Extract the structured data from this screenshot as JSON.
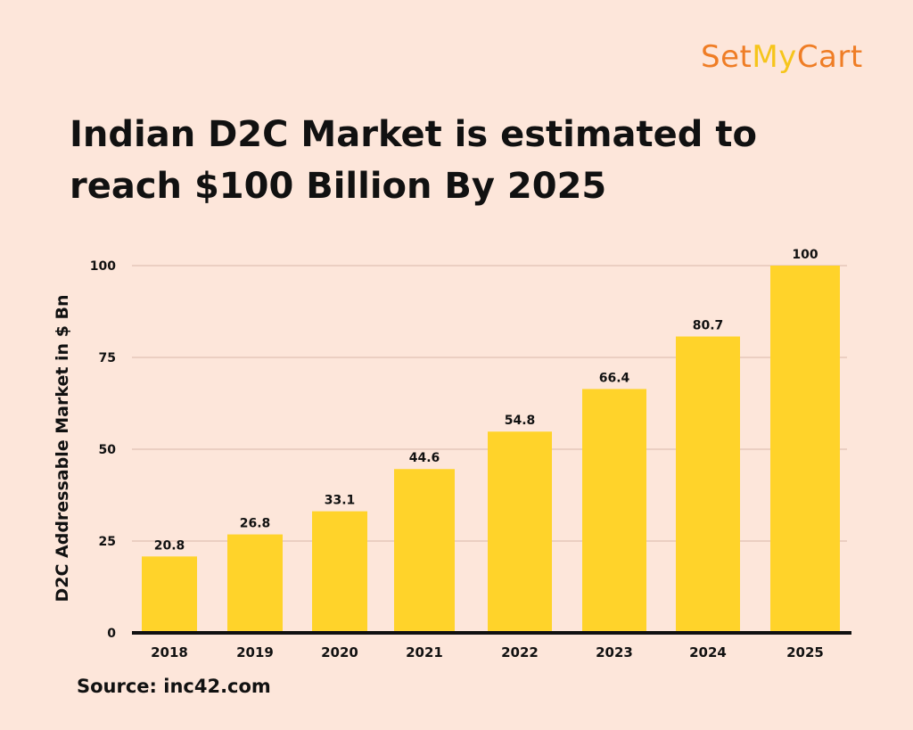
{
  "logo": {
    "part1": "Set",
    "part2": "My",
    "part3": "Cart"
  },
  "title": {
    "line1": "Indian D2C Market is estimated to",
    "line2": "reach $100 Billion By 2025"
  },
  "source": "Source: inc42.com",
  "colors": {
    "bar": "#ffd32a",
    "background": "#fde6da",
    "grid": "#d9b8ab",
    "axis": "#111111",
    "text": "#111111"
  },
  "chart_data": {
    "type": "bar",
    "title": "Indian D2C Market is estimated to reach $100 Billion By 2025",
    "categories": [
      "2018",
      "2019",
      "2020",
      "2021",
      "2022",
      "2023",
      "2024",
      "2025"
    ],
    "values": [
      20.8,
      26.8,
      33.1,
      44.6,
      54.8,
      66.4,
      80.7,
      100
    ],
    "data_labels": [
      "20.8",
      "26.8",
      "33.1",
      "44.6",
      "54.8",
      "66.4",
      "80.7",
      "100"
    ],
    "xlabel": "",
    "ylabel": "D2C  Addressable Market in $ Bn",
    "y_ticks": [
      0,
      25,
      50,
      75,
      100
    ],
    "ylim": [
      0,
      100
    ],
    "grid": true,
    "legend": "none"
  }
}
